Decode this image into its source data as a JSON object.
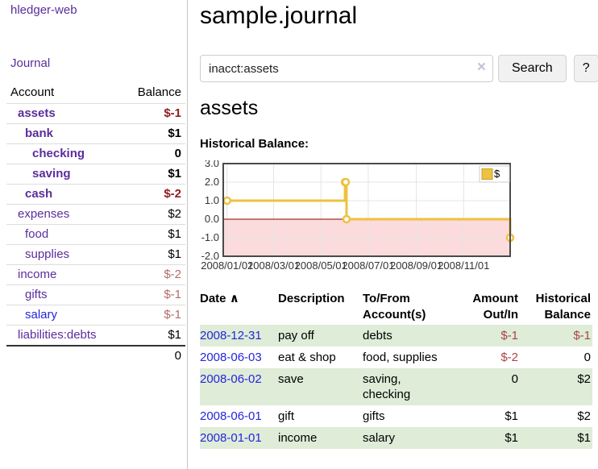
{
  "sidebar": {
    "app_title": "hledger-web",
    "journal_link": "Journal",
    "accounts": {
      "col_account": "Account",
      "col_balance": "Balance",
      "rows": [
        {
          "name": "assets",
          "balance": "$-1"
        },
        {
          "name": "bank",
          "balance": "$1"
        },
        {
          "name": "checking",
          "balance": "0"
        },
        {
          "name": "saving",
          "balance": "$1"
        },
        {
          "name": "cash",
          "balance": "$-2"
        },
        {
          "name": "expenses",
          "balance": "$2"
        },
        {
          "name": "food",
          "balance": "$1"
        },
        {
          "name": "supplies",
          "balance": "$1"
        },
        {
          "name": "income",
          "balance": "$-2"
        },
        {
          "name": "gifts",
          "balance": "$-1"
        },
        {
          "name": "salary",
          "balance": "$-1"
        },
        {
          "name": "liabilities:debts",
          "balance": "$1"
        }
      ],
      "total": "0"
    }
  },
  "header": {
    "title": "sample.journal"
  },
  "search": {
    "value": "inacct:assets",
    "button_label": "Search",
    "help_label": "?"
  },
  "icons": {
    "clear": "×",
    "sort_asc": "∧"
  },
  "account_page": {
    "heading": "assets",
    "chart_title": "Historical Balance:"
  },
  "chart_data": {
    "type": "line",
    "step": true,
    "title": "Historical Balance:",
    "xlabel": "",
    "ylabel": "",
    "xlim": [
      "2007-12-27",
      "2008-12-31"
    ],
    "ylim": [
      -2,
      3
    ],
    "grid": true,
    "legend": {
      "position": "top-right",
      "entries": [
        {
          "label": "$",
          "color": "#edc240"
        }
      ]
    },
    "series": [
      {
        "name": "$",
        "color": "#edc240",
        "points": [
          [
            "2008-01-01",
            1
          ],
          [
            "2008-06-01",
            2
          ],
          [
            "2008-06-02",
            2
          ],
          [
            "2008-06-03",
            0
          ],
          [
            "2008-12-31",
            -1
          ]
        ]
      }
    ],
    "yticks": [
      {
        "value": 3,
        "label": "3.0"
      },
      {
        "value": 2,
        "label": "2.0"
      },
      {
        "value": 1,
        "label": "1.0"
      },
      {
        "value": 0,
        "label": "0.0"
      },
      {
        "value": -1,
        "label": "-1.0"
      },
      {
        "value": -2,
        "label": "-2.0"
      }
    ],
    "xticks": [
      {
        "value": "2008-01-01",
        "label": "2008/01/01"
      },
      {
        "value": "2008-03-01",
        "label": "2008/03/01"
      },
      {
        "value": "2008-05-01",
        "label": "2008/05/01"
      },
      {
        "value": "2008-07-01",
        "label": "2008/07/01"
      },
      {
        "value": "2008-09-01",
        "label": "2008/09/01"
      },
      {
        "value": "2008-11-01",
        "label": "2008/11/01"
      }
    ],
    "zero_line_color": "#8b0000",
    "negative_region_color": "#fbdbdb",
    "gridline_color": "#e4e4e4",
    "border_color": "#4a4a4a"
  },
  "register": {
    "columns": {
      "date": "Date",
      "description": "Description",
      "account_line1": "To/From",
      "account_line2": "Account(s)",
      "amount_line1": "Amount",
      "amount_line2": "Out/In",
      "balance_line1": "Historical",
      "balance_line2": "Balance"
    },
    "rows": [
      {
        "date": "2008-12-31",
        "description": "pay off",
        "accounts": "debts",
        "amount": "$-1",
        "balance": "$-1"
      },
      {
        "date": "2008-06-03",
        "description": "eat & shop",
        "accounts": "food, supplies",
        "amount": "$-2",
        "balance": "0"
      },
      {
        "date": "2008-06-02",
        "description": "save",
        "accounts": "saving, checking",
        "amount": "0",
        "balance": "$2"
      },
      {
        "date": "2008-06-01",
        "description": "gift",
        "accounts": "gifts",
        "amount": "$1",
        "balance": "$2"
      },
      {
        "date": "2008-01-01",
        "description": "income",
        "accounts": "salary",
        "amount": "$1",
        "balance": "$1"
      }
    ]
  },
  "colors": {
    "link_purple": "#5b2d9b",
    "link_blue": "#2525db",
    "negative_strong": "#8f1c1c",
    "negative_light": "#b26b6b",
    "negative_table": "#a94444",
    "row_stripe_green": "#deecd8",
    "series_gold": "#edc240"
  }
}
